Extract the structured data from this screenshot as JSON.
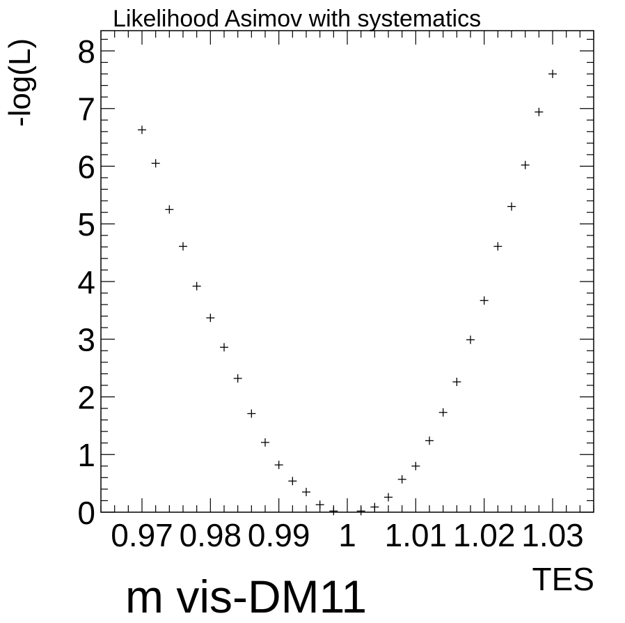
{
  "chart_data": {
    "type": "scatter",
    "title": "Likelihood Asimov with systematics",
    "xlabel": "TES",
    "ylabel": "-log(L)",
    "caption": "m  vis-DM11",
    "xlim": [
      0.964,
      1.036
    ],
    "ylim": [
      0,
      8.35
    ],
    "x_ticks": [
      "0.97",
      "0.98",
      "0.99",
      "1",
      "1.01",
      "1.02",
      "1.03"
    ],
    "x_tick_values": [
      0.97,
      0.98,
      0.99,
      1.0,
      1.01,
      1.02,
      1.03
    ],
    "y_ticks": [
      "0",
      "1",
      "2",
      "3",
      "4",
      "5",
      "6",
      "7",
      "8"
    ],
    "y_tick_values": [
      0,
      1,
      2,
      3,
      4,
      5,
      6,
      7,
      8
    ],
    "marker": "plus",
    "grid": false,
    "points": [
      {
        "x": 0.97,
        "y": 6.63
      },
      {
        "x": 0.972,
        "y": 6.05
      },
      {
        "x": 0.974,
        "y": 5.25
      },
      {
        "x": 0.976,
        "y": 4.61
      },
      {
        "x": 0.978,
        "y": 3.92
      },
      {
        "x": 0.98,
        "y": 3.37
      },
      {
        "x": 0.982,
        "y": 2.86
      },
      {
        "x": 0.984,
        "y": 2.32
      },
      {
        "x": 0.986,
        "y": 1.71
      },
      {
        "x": 0.988,
        "y": 1.21
      },
      {
        "x": 0.99,
        "y": 0.82
      },
      {
        "x": 0.992,
        "y": 0.54
      },
      {
        "x": 0.994,
        "y": 0.35
      },
      {
        "x": 0.996,
        "y": 0.13
      },
      {
        "x": 0.998,
        "y": 0.02
      },
      {
        "x": 1.002,
        "y": 0.02
      },
      {
        "x": 1.004,
        "y": 0.09
      },
      {
        "x": 1.006,
        "y": 0.26
      },
      {
        "x": 1.008,
        "y": 0.57
      },
      {
        "x": 1.01,
        "y": 0.8
      },
      {
        "x": 1.012,
        "y": 1.24
      },
      {
        "x": 1.014,
        "y": 1.73
      },
      {
        "x": 1.016,
        "y": 2.26
      },
      {
        "x": 1.018,
        "y": 2.99
      },
      {
        "x": 1.02,
        "y": 3.67
      },
      {
        "x": 1.022,
        "y": 4.61
      },
      {
        "x": 1.024,
        "y": 5.3
      },
      {
        "x": 1.026,
        "y": 6.02
      },
      {
        "x": 1.028,
        "y": 6.94
      },
      {
        "x": 1.03,
        "y": 7.6
      }
    ]
  },
  "colors": {
    "marker": "#000000",
    "axis": "#000000",
    "background": "#ffffff"
  }
}
